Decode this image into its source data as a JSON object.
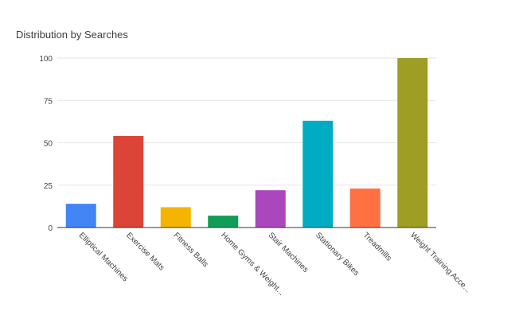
{
  "chart_data": {
    "type": "bar",
    "title": "Distribution by Searches",
    "xlabel": "",
    "ylabel": "",
    "ylim": [
      0,
      100
    ],
    "yticks": [
      "0",
      "25",
      "50",
      "75",
      "100"
    ],
    "grid": true,
    "legend": "none",
    "categories": [
      "Elliptical Machines",
      "Exercise Mats",
      "Fitness Balls",
      "Home Gyms & Weight...",
      "Stair Machines",
      "Stationary Bikes",
      "Treadmills",
      "Weight Training Acce..."
    ],
    "values": [
      14,
      54,
      12,
      7,
      22,
      63,
      23,
      100
    ],
    "colors": [
      "#4285f4",
      "#db4437",
      "#f4b400",
      "#0f9d58",
      "#ab47bc",
      "#00acc1",
      "#ff7043",
      "#9e9d24"
    ]
  }
}
